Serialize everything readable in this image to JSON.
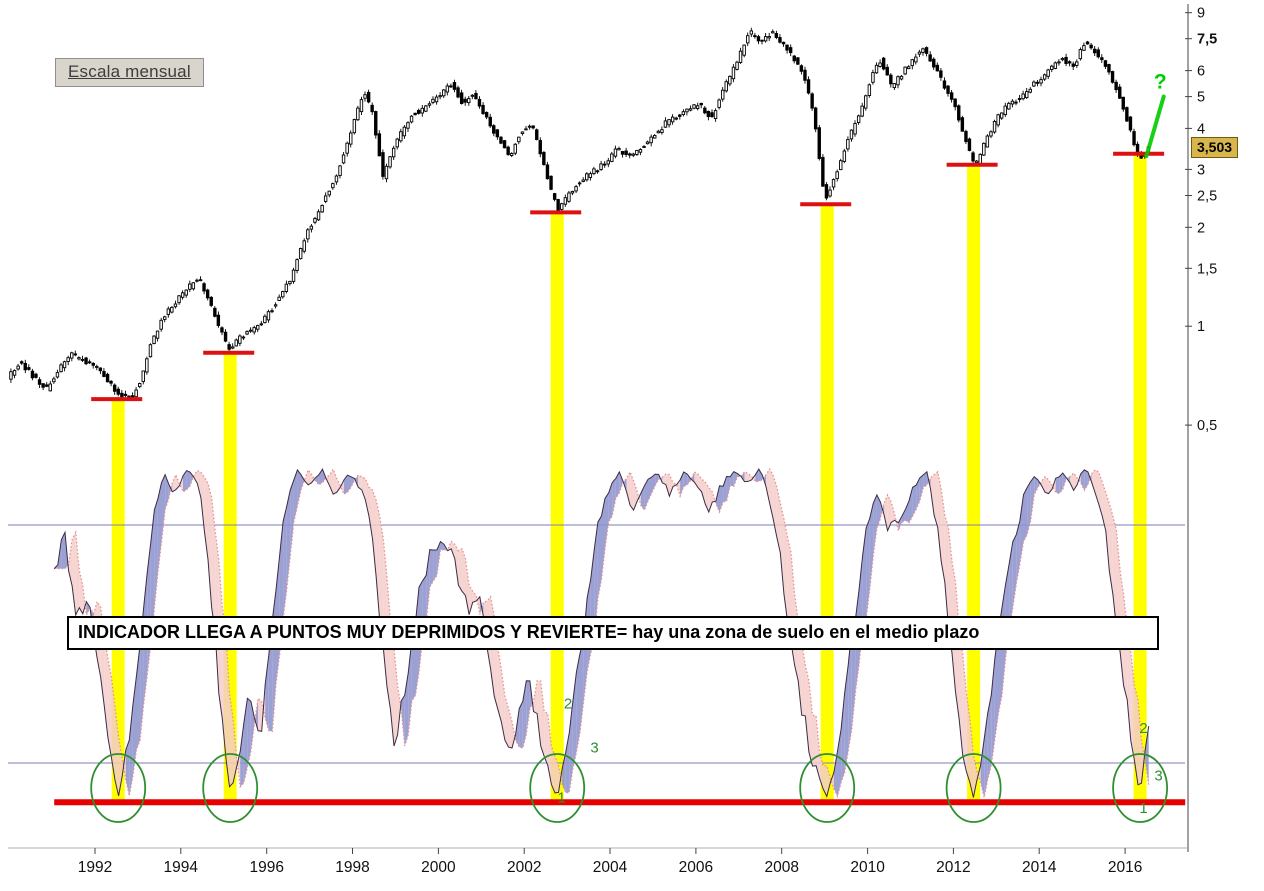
{
  "scale_badge": {
    "label": "Escala mensual"
  },
  "annotation": {
    "text": "INDICADOR LLEGA A PUNTOS MUY DEPRIMIDOS Y REVIERTE= hay una zona de suelo en el medio plazo"
  },
  "price_tag": {
    "label": "3,503",
    "value": 3.503,
    "bg": "#d8b64c"
  },
  "question_marker": {
    "label": "?",
    "year": 2016.82,
    "price": 5.3
  },
  "colors": {
    "band": "#ffff00",
    "support": "#dd1111",
    "floor": "#e60000",
    "green": "#2f8f2f",
    "bright_green": "#00cc00",
    "osc_fill_up": "#8b90cc",
    "osc_fill_down": "#f3cdc9",
    "osc_main": "#3c2b45",
    "osc_signal": "#e98f8f",
    "ref_line": "#7d7db4",
    "axis": "#444444",
    "tick_text": "#111111"
  },
  "chart_data": {
    "type": "candlestick",
    "panes": [
      "monthly price, log scale",
      "momentum oscillator"
    ],
    "x_axis": {
      "ticks": [
        1992,
        1994,
        1996,
        1998,
        2000,
        2002,
        2004,
        2006,
        2008,
        2010,
        2012,
        2014,
        2016
      ],
      "range": [
        1990.0,
        2017.45
      ]
    },
    "price_axis": {
      "scale": "log",
      "range": [
        0.45,
        9.5
      ],
      "ticks": [
        {
          "label": "9",
          "value": 9
        },
        {
          "label": "7,5",
          "value": 7.5,
          "bold": true
        },
        {
          "label": "6",
          "value": 6
        },
        {
          "label": "5",
          "value": 5
        },
        {
          "label": "4",
          "value": 4
        },
        {
          "label": "3",
          "value": 3
        },
        {
          "label": "2,5",
          "value": 2.5
        },
        {
          "label": "2",
          "value": 2
        },
        {
          "label": "1,5",
          "value": 1.5
        },
        {
          "label": "1",
          "value": 1
        },
        {
          "label": "0,5",
          "value": 0.5
        }
      ]
    },
    "last_price": 3.503,
    "price_keyframes": [
      [
        1990.0,
        0.7
      ],
      [
        1990.3,
        0.78
      ],
      [
        1990.6,
        0.7
      ],
      [
        1990.9,
        0.64
      ],
      [
        1991.2,
        0.74
      ],
      [
        1991.5,
        0.82
      ],
      [
        1991.8,
        0.78
      ],
      [
        1992.1,
        0.74
      ],
      [
        1992.35,
        0.68
      ],
      [
        1992.6,
        0.62
      ],
      [
        1992.9,
        0.61
      ],
      [
        1993.1,
        0.68
      ],
      [
        1993.3,
        0.85
      ],
      [
        1993.6,
        1.05
      ],
      [
        1993.9,
        1.18
      ],
      [
        1994.2,
        1.3
      ],
      [
        1994.45,
        1.42
      ],
      [
        1994.7,
        1.18
      ],
      [
        1994.95,
        0.98
      ],
      [
        1995.15,
        0.84
      ],
      [
        1995.4,
        0.92
      ],
      [
        1995.65,
        0.96
      ],
      [
        1995.9,
        1.02
      ],
      [
        1996.2,
        1.15
      ],
      [
        1996.6,
        1.4
      ],
      [
        1997.0,
        1.95
      ],
      [
        1997.5,
        2.6
      ],
      [
        1997.8,
        3.2
      ],
      [
        1998.05,
        4.1
      ],
      [
        1998.3,
        5.2
      ],
      [
        1998.5,
        4.5
      ],
      [
        1998.75,
        2.85
      ],
      [
        1999.0,
        3.5
      ],
      [
        1999.4,
        4.4
      ],
      [
        1999.7,
        4.6
      ],
      [
        2000.0,
        5.0
      ],
      [
        2000.35,
        5.5
      ],
      [
        2000.6,
        4.8
      ],
      [
        2000.85,
        5.1
      ],
      [
        2001.1,
        4.4
      ],
      [
        2001.4,
        3.8
      ],
      [
        2001.7,
        3.3
      ],
      [
        2001.95,
        3.9
      ],
      [
        2002.2,
        4.15
      ],
      [
        2002.45,
        3.3
      ],
      [
        2002.65,
        2.6
      ],
      [
        2002.85,
        2.25
      ],
      [
        2003.05,
        2.5
      ],
      [
        2003.3,
        2.75
      ],
      [
        2003.6,
        2.95
      ],
      [
        2003.9,
        3.1
      ],
      [
        2004.2,
        3.45
      ],
      [
        2004.5,
        3.3
      ],
      [
        2004.8,
        3.55
      ],
      [
        2005.1,
        3.85
      ],
      [
        2005.45,
        4.3
      ],
      [
        2005.8,
        4.5
      ],
      [
        2006.1,
        4.75
      ],
      [
        2006.4,
        4.3
      ],
      [
        2006.7,
        5.3
      ],
      [
        2007.0,
        6.4
      ],
      [
        2007.3,
        7.9
      ],
      [
        2007.55,
        7.2
      ],
      [
        2007.8,
        7.9
      ],
      [
        2008.05,
        7.3
      ],
      [
        2008.3,
        6.6
      ],
      [
        2008.55,
        5.8
      ],
      [
        2008.8,
        4.3
      ],
      [
        2009.05,
        2.4
      ],
      [
        2009.3,
        2.9
      ],
      [
        2009.55,
        3.6
      ],
      [
        2009.85,
        4.4
      ],
      [
        2010.1,
        5.6
      ],
      [
        2010.35,
        6.5
      ],
      [
        2010.6,
        5.3
      ],
      [
        2010.85,
        5.9
      ],
      [
        2011.1,
        6.5
      ],
      [
        2011.35,
        7.0
      ],
      [
        2011.6,
        6.2
      ],
      [
        2011.85,
        5.3
      ],
      [
        2012.1,
        4.6
      ],
      [
        2012.35,
        3.6
      ],
      [
        2012.55,
        3.05
      ],
      [
        2012.8,
        3.7
      ],
      [
        2013.05,
        4.3
      ],
      [
        2013.35,
        4.75
      ],
      [
        2013.65,
        5.0
      ],
      [
        2013.95,
        5.5
      ],
      [
        2014.25,
        6.0
      ],
      [
        2014.55,
        6.5
      ],
      [
        2014.85,
        6.2
      ],
      [
        2015.1,
        7.3
      ],
      [
        2015.35,
        6.8
      ],
      [
        2015.6,
        6.2
      ],
      [
        2015.85,
        5.2
      ],
      [
        2016.1,
        4.2
      ],
      [
        2016.3,
        3.35
      ],
      [
        2016.45,
        3.2
      ],
      [
        2016.58,
        3.503
      ]
    ],
    "oscillator": {
      "range": [
        0,
        100
      ],
      "upper_ref": 80,
      "lower_ref": 12,
      "lag_months": 3,
      "keyframes": [
        [
          1991.05,
          68
        ],
        [
          1991.3,
          78
        ],
        [
          1991.55,
          52
        ],
        [
          1991.8,
          60
        ],
        [
          1992.05,
          42
        ],
        [
          1992.3,
          22
        ],
        [
          1992.54,
          2
        ],
        [
          1992.75,
          16
        ],
        [
          1993.0,
          42
        ],
        [
          1993.3,
          78
        ],
        [
          1993.6,
          95
        ],
        [
          1993.85,
          89
        ],
        [
          1994.15,
          96
        ],
        [
          1994.45,
          91
        ],
        [
          1994.7,
          62
        ],
        [
          1994.95,
          24
        ],
        [
          1995.15,
          3
        ],
        [
          1995.35,
          14
        ],
        [
          1995.6,
          32
        ],
        [
          1995.85,
          18
        ],
        [
          1996.1,
          50
        ],
        [
          1996.4,
          82
        ],
        [
          1996.7,
          96
        ],
        [
          1997.0,
          91
        ],
        [
          1997.3,
          96
        ],
        [
          1997.6,
          89
        ],
        [
          1997.9,
          95
        ],
        [
          1998.2,
          91
        ],
        [
          1998.45,
          78
        ],
        [
          1998.7,
          45
        ],
        [
          1998.95,
          17
        ],
        [
          1999.2,
          32
        ],
        [
          1999.5,
          58
        ],
        [
          1999.8,
          72
        ],
        [
          2000.1,
          78
        ],
        [
          2000.4,
          68
        ],
        [
          2000.7,
          54
        ],
        [
          2001.0,
          60
        ],
        [
          2001.3,
          33
        ],
        [
          2001.6,
          14
        ],
        [
          2001.85,
          24
        ],
        [
          2002.1,
          38
        ],
        [
          2002.35,
          20
        ],
        [
          2002.6,
          8
        ],
        [
          2002.77,
          1
        ],
        [
          2003.0,
          18
        ],
        [
          2003.3,
          42
        ],
        [
          2003.6,
          72
        ],
        [
          2003.9,
          88
        ],
        [
          2004.2,
          95
        ],
        [
          2004.5,
          84
        ],
        [
          2004.8,
          91
        ],
        [
          2005.1,
          95
        ],
        [
          2005.4,
          89
        ],
        [
          2005.7,
          95
        ],
        [
          2006.0,
          92
        ],
        [
          2006.3,
          84
        ],
        [
          2006.6,
          91
        ],
        [
          2006.9,
          96
        ],
        [
          2007.2,
          92
        ],
        [
          2007.5,
          96
        ],
        [
          2007.8,
          84
        ],
        [
          2008.1,
          58
        ],
        [
          2008.4,
          33
        ],
        [
          2008.7,
          13
        ],
        [
          2009.06,
          2
        ],
        [
          2009.3,
          14
        ],
        [
          2009.6,
          44
        ],
        [
          2009.9,
          73
        ],
        [
          2010.2,
          89
        ],
        [
          2010.5,
          77
        ],
        [
          2010.8,
          84
        ],
        [
          2011.1,
          92
        ],
        [
          2011.4,
          95
        ],
        [
          2011.7,
          73
        ],
        [
          2012.0,
          38
        ],
        [
          2012.25,
          13
        ],
        [
          2012.47,
          2
        ],
        [
          2012.7,
          17
        ],
        [
          2013.0,
          44
        ],
        [
          2013.3,
          68
        ],
        [
          2013.6,
          86
        ],
        [
          2013.9,
          94
        ],
        [
          2014.2,
          89
        ],
        [
          2014.5,
          95
        ],
        [
          2014.8,
          91
        ],
        [
          2015.1,
          96
        ],
        [
          2015.4,
          87
        ],
        [
          2015.65,
          68
        ],
        [
          2015.9,
          42
        ],
        [
          2016.15,
          18
        ],
        [
          2016.35,
          2
        ],
        [
          2016.55,
          24
        ]
      ]
    },
    "signal_events": [
      {
        "year": 1992.54,
        "support_price": 0.6
      },
      {
        "year": 1995.15,
        "support_price": 0.83
      },
      {
        "year": 2002.77,
        "support_price": 2.22
      },
      {
        "year": 2009.06,
        "support_price": 2.35
      },
      {
        "year": 2012.47,
        "support_price": 3.1
      },
      {
        "year": 2016.35,
        "support_price": 3.35
      }
    ],
    "reversal_markers": [
      {
        "label": "2",
        "year": 2003.02,
        "osc_value": 29
      },
      {
        "label": "3",
        "year": 2003.64,
        "osc_value": 16.5
      },
      {
        "label": "1",
        "year": 2002.87,
        "osc_value": 2.2
      },
      {
        "label": "2",
        "year": 2016.43,
        "osc_value": 22
      },
      {
        "label": "3",
        "year": 2016.78,
        "osc_value": 8.5
      },
      {
        "label": "1",
        "year": 2016.43,
        "osc_value": -0.8
      }
    ],
    "floor_line": {
      "from_year": 1991.05,
      "to_year": 2017.4,
      "osc_value": 0.8
    },
    "trend_arrow": {
      "from": {
        "year": 2016.5,
        "price": 3.3
      },
      "to": {
        "year": 2016.9,
        "price": 5.0
      }
    }
  }
}
